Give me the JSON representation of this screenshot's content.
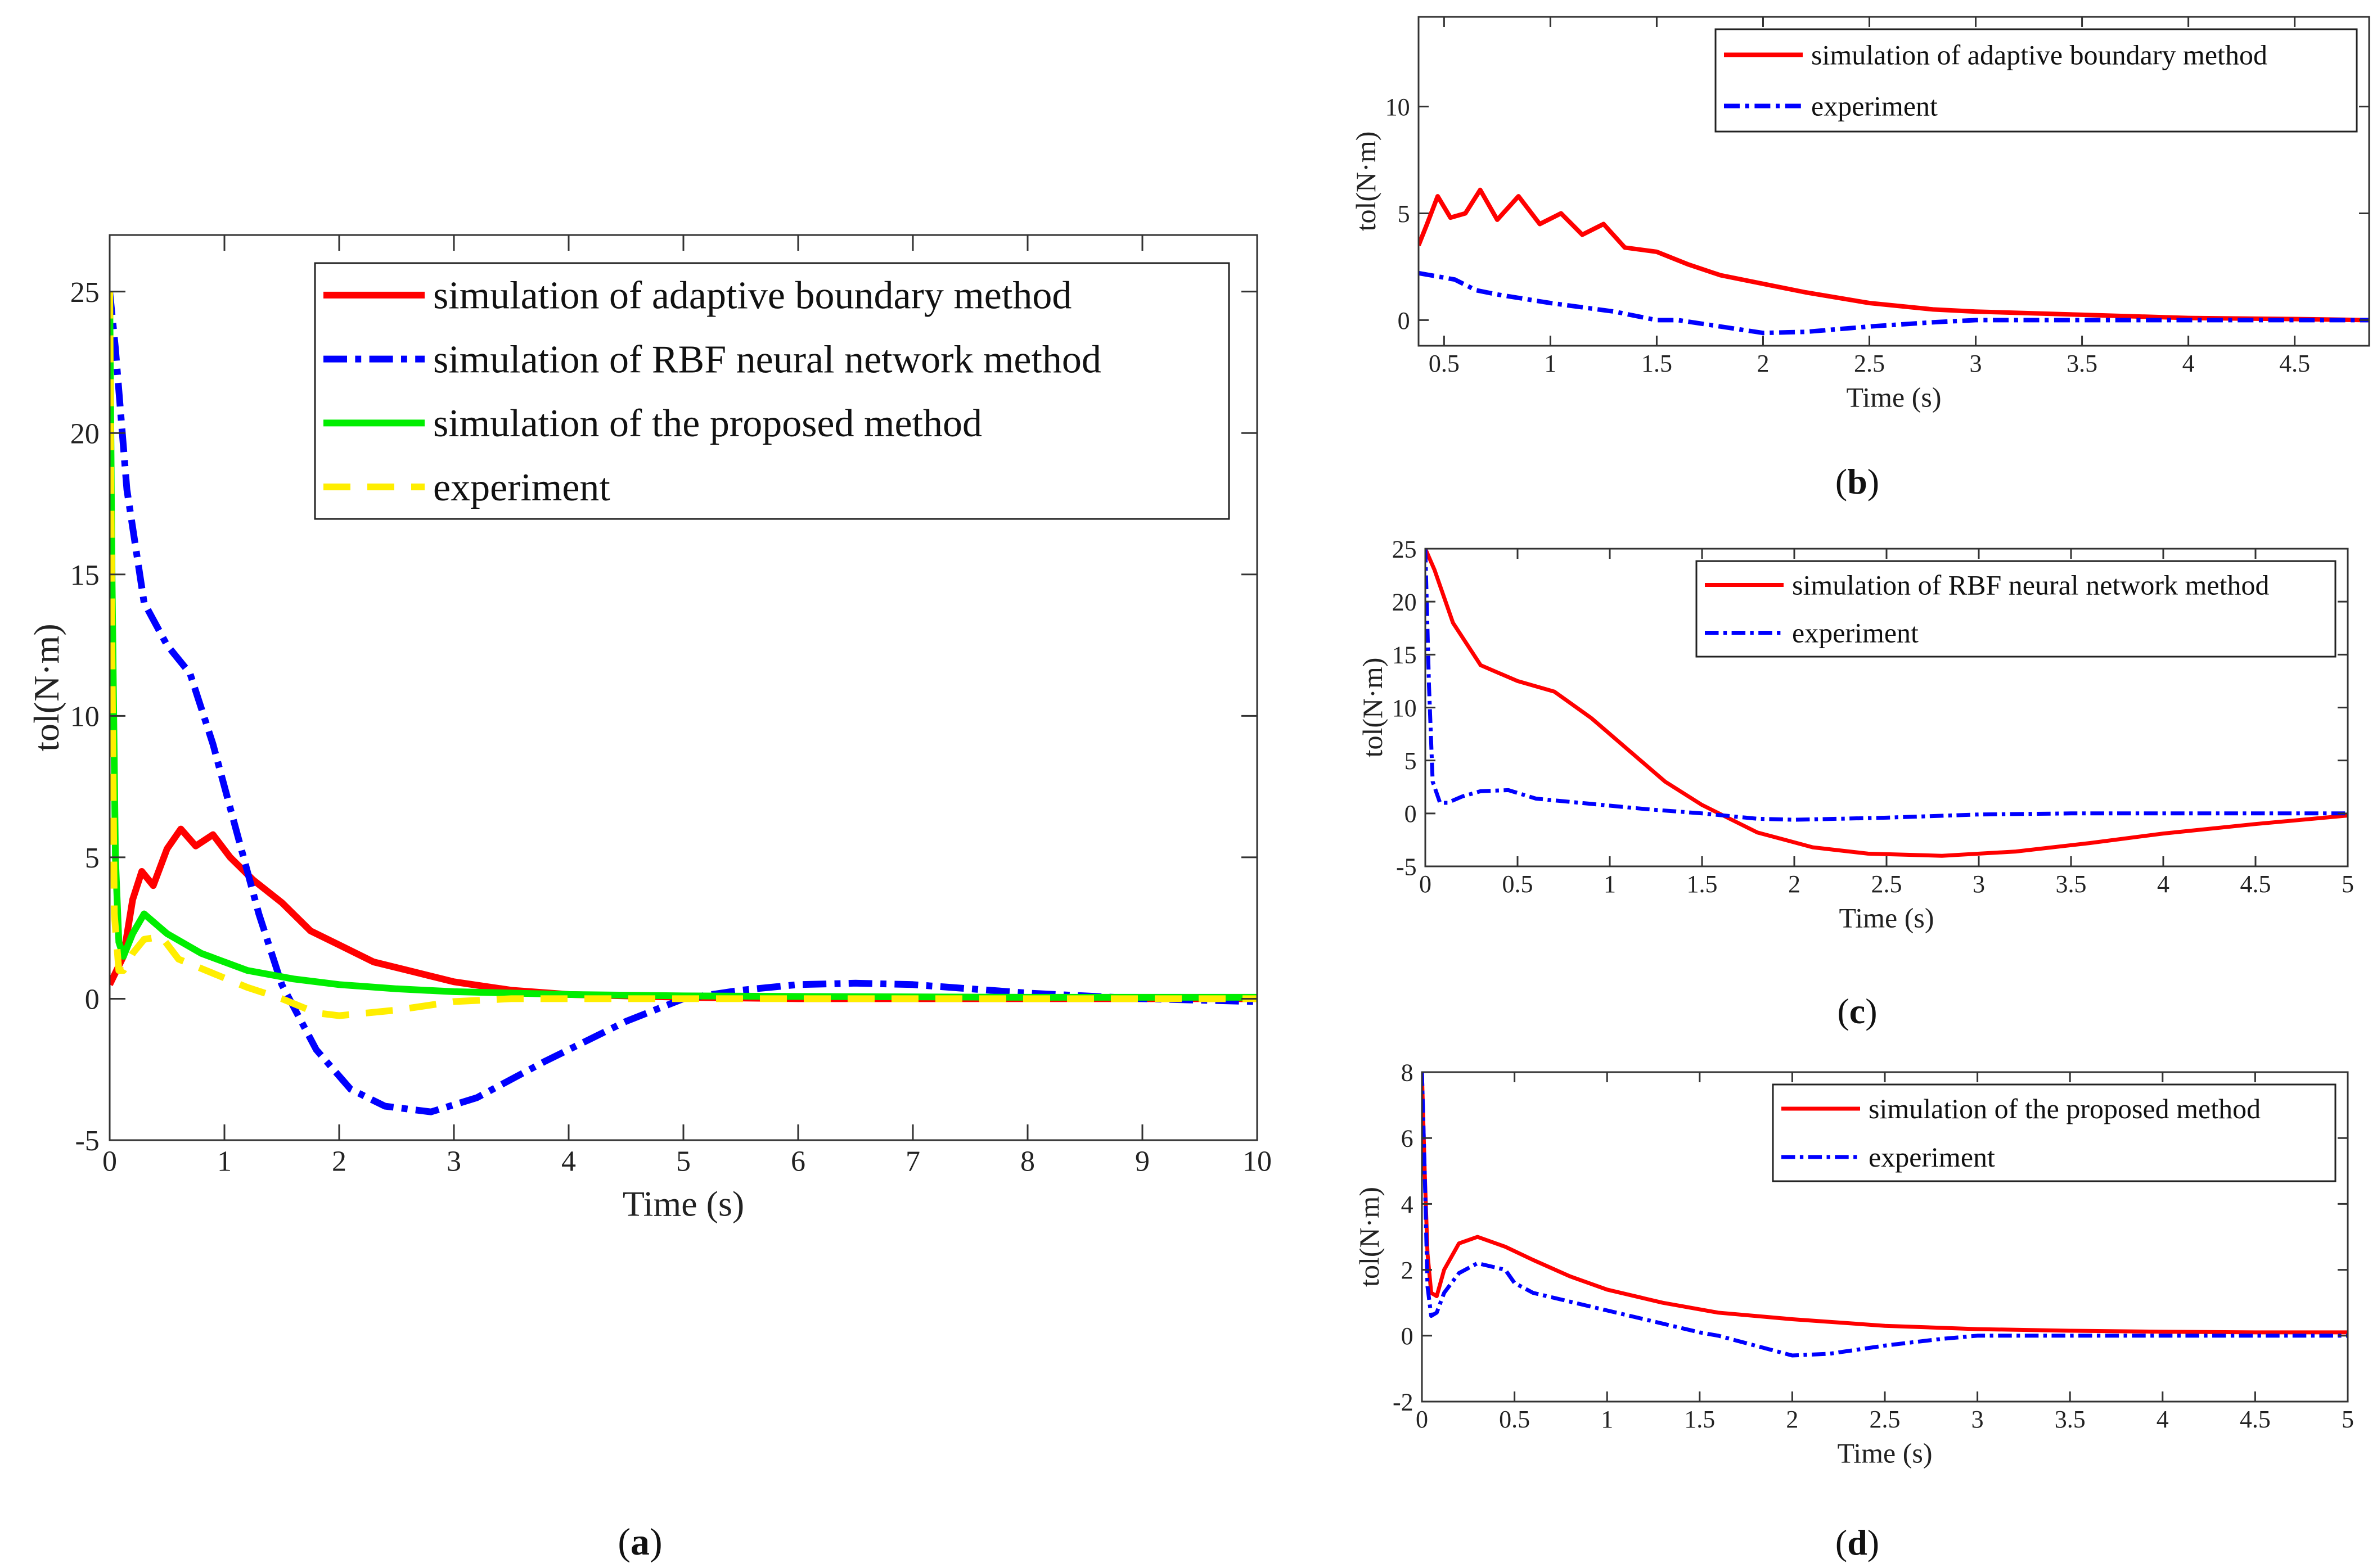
{
  "chart_data": [
    {
      "id": "a",
      "type": "line",
      "caption": "(a)",
      "caption_letter": "a",
      "xlabel": "Time (s)",
      "ylabel": "tol(N·m)",
      "xlim": [
        0,
        10
      ],
      "ylim": [
        -5,
        27
      ],
      "xticks": [
        0,
        1,
        2,
        3,
        4,
        5,
        6,
        7,
        8,
        9,
        10
      ],
      "yticks": [
        -5,
        0,
        5,
        10,
        15,
        20,
        25
      ],
      "xtick_labels": [
        "0",
        "1",
        "2",
        "3",
        "4",
        "5",
        "6",
        "7",
        "8",
        "9",
        "10"
      ],
      "ytick_labels": [
        "-5",
        "0",
        "5",
        "10",
        "15",
        "20",
        "25"
      ],
      "legend_position": "top-right",
      "series": [
        {
          "name": "simulation of adaptive boundary method",
          "color": "#ff0000",
          "style": "solid",
          "x": [
            0,
            0.12,
            0.2,
            0.28,
            0.38,
            0.5,
            0.62,
            0.75,
            0.9,
            1.05,
            1.25,
            1.5,
            1.75,
            2,
            2.3,
            2.6,
            3,
            3.5,
            4,
            5,
            6,
            7,
            8,
            10
          ],
          "y": [
            0.5,
            1.5,
            3.5,
            4.5,
            4.0,
            5.3,
            6.0,
            5.4,
            5.8,
            5.0,
            4.2,
            3.4,
            2.4,
            1.9,
            1.3,
            1.0,
            0.6,
            0.3,
            0.15,
            0.05,
            0.0,
            0.0,
            0.0,
            0.0
          ]
        },
        {
          "name": "simulation of RBF neural network method",
          "color": "#0000ff",
          "style": "dashdot",
          "x": [
            0,
            0.05,
            0.15,
            0.3,
            0.5,
            0.7,
            0.9,
            1.1,
            1.3,
            1.5,
            1.8,
            2.1,
            2.4,
            2.8,
            3.2,
            3.8,
            4.5,
            5,
            5.5,
            6,
            6.5,
            7,
            7.5,
            8,
            8.5,
            9,
            9.5,
            10
          ],
          "y": [
            25,
            23,
            18,
            14,
            12.5,
            11.5,
            9,
            6,
            3,
            0.5,
            -1.8,
            -3.2,
            -3.8,
            -4.0,
            -3.5,
            -2.2,
            -0.8,
            0.0,
            0.3,
            0.5,
            0.55,
            0.5,
            0.35,
            0.2,
            0.1,
            0.0,
            -0.05,
            -0.1
          ]
        },
        {
          "name": "simulation of the proposed method",
          "color": "#00ee00",
          "style": "solid",
          "x": [
            0,
            0.02,
            0.05,
            0.08,
            0.12,
            0.2,
            0.3,
            0.5,
            0.8,
            1.2,
            1.6,
            2,
            2.5,
            3,
            4,
            5,
            6,
            8,
            10
          ],
          "y": [
            25,
            15,
            5,
            2,
            1.5,
            2.3,
            3.0,
            2.3,
            1.6,
            1.0,
            0.7,
            0.5,
            0.35,
            0.25,
            0.15,
            0.1,
            0.08,
            0.05,
            0.05
          ]
        },
        {
          "name": "experiment",
          "color": "#ffee00",
          "style": "dashed",
          "x": [
            0,
            0.02,
            0.04,
            0.08,
            0.12,
            0.2,
            0.3,
            0.45,
            0.6,
            0.9,
            1.2,
            1.5,
            1.8,
            2.0,
            2.5,
            3.0,
            3.5,
            4,
            5,
            6,
            8,
            10
          ],
          "y": [
            25,
            12,
            3,
            1.0,
            1.0,
            1.6,
            2.1,
            2.2,
            1.4,
            0.9,
            0.4,
            0.0,
            -0.5,
            -0.6,
            -0.4,
            -0.1,
            0.0,
            0.0,
            0.0,
            0.0,
            0.0,
            0.0
          ]
        }
      ]
    },
    {
      "id": "b",
      "type": "line",
      "caption": "(b)",
      "caption_letter": "b",
      "xlabel": "Time (s)",
      "ylabel": "tol(N·m)",
      "xlim": [
        0.38,
        4.85
      ],
      "ylim": [
        -1.2,
        14.2
      ],
      "xticks": [
        0.5,
        1,
        1.5,
        2,
        2.5,
        3,
        3.5,
        4,
        4.5
      ],
      "yticks": [
        0,
        5,
        10
      ],
      "xtick_labels": [
        "0.5",
        "1",
        "1.5",
        "2",
        "2.5",
        "3",
        "3.5",
        "4",
        "4.5"
      ],
      "ytick_labels": [
        "0",
        "5",
        "10"
      ],
      "legend_position": "top-right",
      "series": [
        {
          "name": "simulation of adaptive boundary method",
          "color": "#ff0000",
          "style": "solid",
          "x": [
            0.38,
            0.42,
            0.47,
            0.53,
            0.6,
            0.67,
            0.75,
            0.85,
            0.95,
            1.05,
            1.15,
            1.25,
            1.35,
            1.5,
            1.65,
            1.8,
            2.0,
            2.2,
            2.5,
            2.8,
            3.0,
            3.5,
            4.0,
            4.5,
            4.85
          ],
          "y": [
            3.5,
            4.5,
            5.8,
            4.8,
            5.0,
            6.1,
            4.7,
            5.8,
            4.5,
            5.0,
            4.0,
            4.5,
            3.4,
            3.2,
            2.6,
            2.1,
            1.7,
            1.3,
            0.8,
            0.5,
            0.4,
            0.25,
            0.1,
            0.05,
            0.0
          ]
        },
        {
          "name": "experiment",
          "color": "#0000ff",
          "style": "dashdot",
          "x": [
            0.38,
            0.55,
            0.65,
            0.75,
            1.0,
            1.3,
            1.5,
            1.6,
            1.8,
            2.0,
            2.2,
            2.5,
            2.8,
            3.0,
            3.5,
            4.0,
            4.5,
            4.85
          ],
          "y": [
            2.2,
            1.9,
            1.4,
            1.2,
            0.8,
            0.4,
            0.0,
            0.0,
            -0.3,
            -0.6,
            -0.55,
            -0.3,
            -0.1,
            0.0,
            0.0,
            0.0,
            0.0,
            0.0
          ]
        }
      ]
    },
    {
      "id": "c",
      "type": "line",
      "caption": "(c)",
      "caption_letter": "c",
      "xlabel": "Time (s)",
      "ylabel": "tol(N·m)",
      "xlim": [
        0,
        5
      ],
      "ylim": [
        -5,
        25
      ],
      "xticks": [
        0,
        0.5,
        1,
        1.5,
        2,
        2.5,
        3,
        3.5,
        4,
        4.5,
        5
      ],
      "yticks": [
        -5,
        0,
        5,
        10,
        15,
        20,
        25
      ],
      "xtick_labels": [
        "0",
        "0.5",
        "1",
        "1.5",
        "2",
        "2.5",
        "3",
        "3.5",
        "4",
        "4.5",
        "5"
      ],
      "ytick_labels": [
        "-5",
        "0",
        "5",
        "10",
        "15",
        "20",
        "25"
      ],
      "legend_position": "top-right",
      "series": [
        {
          "name": "simulation of RBF neural network method",
          "color": "#ff0000",
          "style": "solid",
          "x": [
            0,
            0.05,
            0.15,
            0.3,
            0.5,
            0.7,
            0.9,
            1.1,
            1.3,
            1.5,
            1.8,
            2.1,
            2.4,
            2.8,
            3.2,
            3.6,
            4.0,
            4.5,
            5.0
          ],
          "y": [
            25,
            23,
            18,
            14,
            12.5,
            11.5,
            9,
            6,
            3,
            0.8,
            -1.8,
            -3.2,
            -3.8,
            -4.0,
            -3.6,
            -2.8,
            -1.9,
            -1.0,
            -0.2
          ]
        },
        {
          "name": "experiment",
          "color": "#0000ff",
          "style": "dashdot",
          "x": [
            0,
            0.02,
            0.04,
            0.08,
            0.12,
            0.2,
            0.3,
            0.45,
            0.6,
            0.9,
            1.2,
            1.5,
            1.8,
            2.0,
            2.5,
            3.0,
            3.5,
            4.0,
            4.5,
            5.0
          ],
          "y": [
            25,
            12,
            3,
            1.0,
            1.0,
            1.6,
            2.1,
            2.2,
            1.4,
            0.9,
            0.4,
            0.0,
            -0.5,
            -0.6,
            -0.4,
            -0.1,
            0.0,
            0.0,
            0.0,
            0.0
          ]
        }
      ]
    },
    {
      "id": "d",
      "type": "line",
      "caption": "(d)",
      "caption_letter": "d",
      "xlabel": "Time (s)",
      "ylabel": "tol(N·m)",
      "xlim": [
        0,
        5
      ],
      "ylim": [
        -2,
        8
      ],
      "xticks": [
        0,
        0.5,
        1,
        1.5,
        2,
        2.5,
        3,
        3.5,
        4,
        4.5,
        5
      ],
      "yticks": [
        -2,
        0,
        2,
        4,
        6,
        8
      ],
      "xtick_labels": [
        "0",
        "0.5",
        "1",
        "1.5",
        "2",
        "2.5",
        "3",
        "3.5",
        "4",
        "4.5",
        "5"
      ],
      "ytick_labels": [
        "-2",
        "0",
        "2",
        "4",
        "6",
        "8"
      ],
      "legend_position": "top-right",
      "series": [
        {
          "name": "simulation of the proposed method",
          "color": "#ff0000",
          "style": "solid",
          "x": [
            0,
            0.015,
            0.03,
            0.05,
            0.08,
            0.12,
            0.2,
            0.3,
            0.45,
            0.6,
            0.8,
            1.0,
            1.3,
            1.6,
            2.0,
            2.5,
            3.0,
            3.5,
            4.0,
            4.5,
            5.0
          ],
          "y": [
            8,
            5,
            2.5,
            1.3,
            1.2,
            2.0,
            2.8,
            3.0,
            2.7,
            2.3,
            1.8,
            1.4,
            1.0,
            0.7,
            0.5,
            0.3,
            0.2,
            0.15,
            0.12,
            0.1,
            0.1
          ]
        },
        {
          "name": "experiment",
          "color": "#0000ff",
          "style": "dashdot",
          "x": [
            0,
            0.015,
            0.03,
            0.05,
            0.08,
            0.12,
            0.2,
            0.3,
            0.45,
            0.5,
            0.6,
            0.9,
            1.2,
            1.5,
            1.6,
            1.8,
            2.0,
            2.2,
            2.5,
            2.8,
            3.0,
            3.5,
            4.0,
            4.5,
            5.0
          ],
          "y": [
            8,
            5,
            1.5,
            0.6,
            0.7,
            1.3,
            1.9,
            2.2,
            2.0,
            1.6,
            1.3,
            0.9,
            0.5,
            0.1,
            0.0,
            -0.3,
            -0.6,
            -0.55,
            -0.3,
            -0.1,
            0.0,
            0.0,
            0.0,
            0.0,
            0.0
          ]
        }
      ]
    }
  ]
}
